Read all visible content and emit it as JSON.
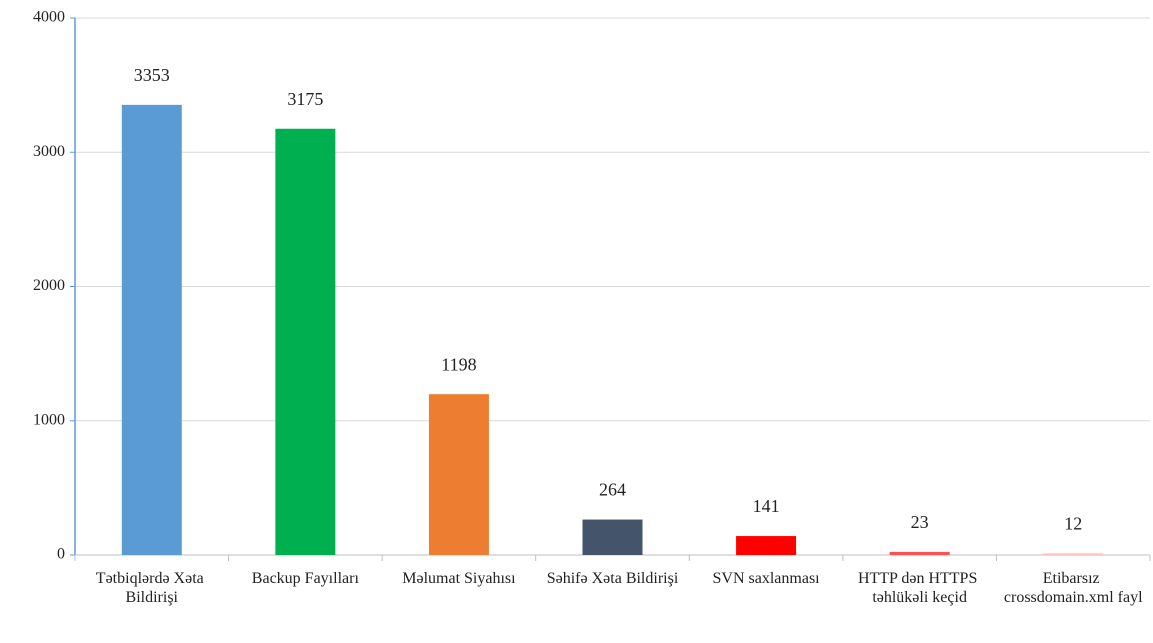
{
  "chart_data": {
    "type": "bar",
    "categories": [
      "Tətbiqlərdə Xəta Bildirişi",
      "Backup Fayılları",
      "Məlumat Siyahısı",
      "Səhifə Xəta Bildirişi",
      "SVN saxlanması",
      "HTTP dən HTTPS təhlükəli keçid",
      "Etibarsız crossdomain.xml fayl"
    ],
    "values": [
      3353,
      3175,
      1198,
      264,
      141,
      23,
      12
    ],
    "colors": [
      "#5b9bd5",
      "#00b050",
      "#ed7d31",
      "#44546a",
      "#ff0000",
      "#ff5050",
      "#ffc0c0"
    ],
    "ylim": [
      0,
      4000
    ],
    "yticks": [
      0,
      1000,
      2000,
      3000,
      4000
    ],
    "grid": true
  }
}
